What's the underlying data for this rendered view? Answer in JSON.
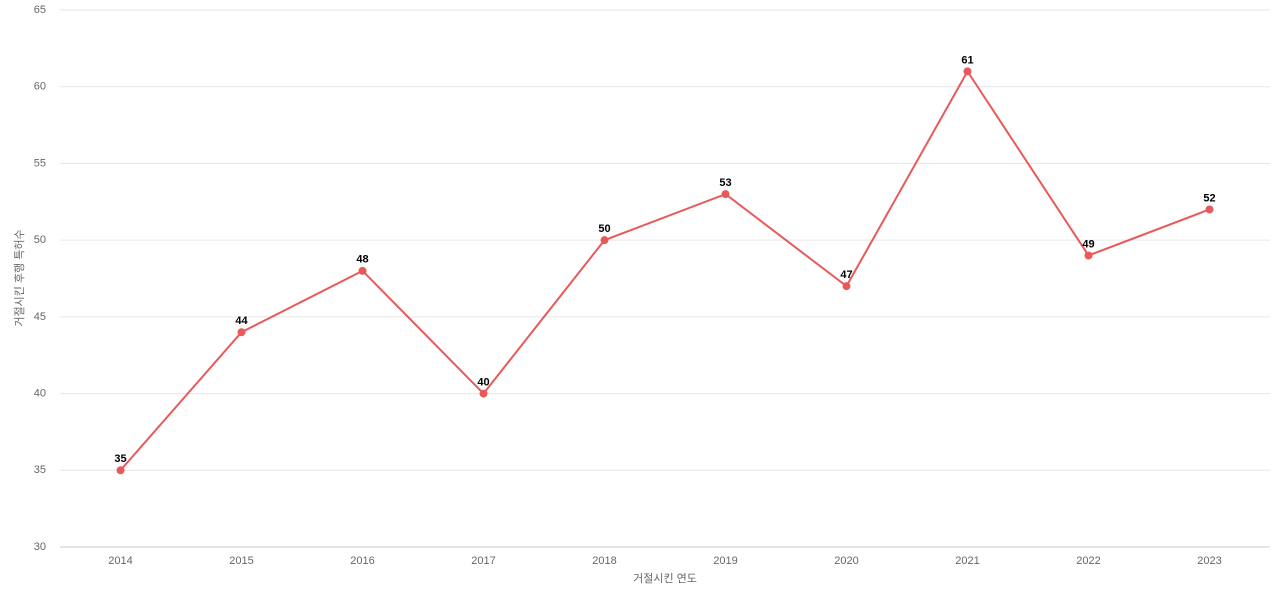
{
  "chart_data": {
    "type": "line",
    "categories": [
      "2014",
      "2015",
      "2016",
      "2017",
      "2018",
      "2019",
      "2020",
      "2021",
      "2022",
      "2023"
    ],
    "series": [
      {
        "name": "거절시킨 후행 특허수",
        "color": "#e85a5a",
        "values": [
          35,
          44,
          48,
          40,
          50,
          53,
          47,
          61,
          49,
          52
        ]
      }
    ],
    "x_label": "거절시킨 연도",
    "y_label": "거절시킨 후행 특허수",
    "ylim": [
      30,
      65
    ],
    "yticks": [
      30,
      35,
      40,
      45,
      50,
      55,
      60,
      65
    ],
    "grid": true
  }
}
